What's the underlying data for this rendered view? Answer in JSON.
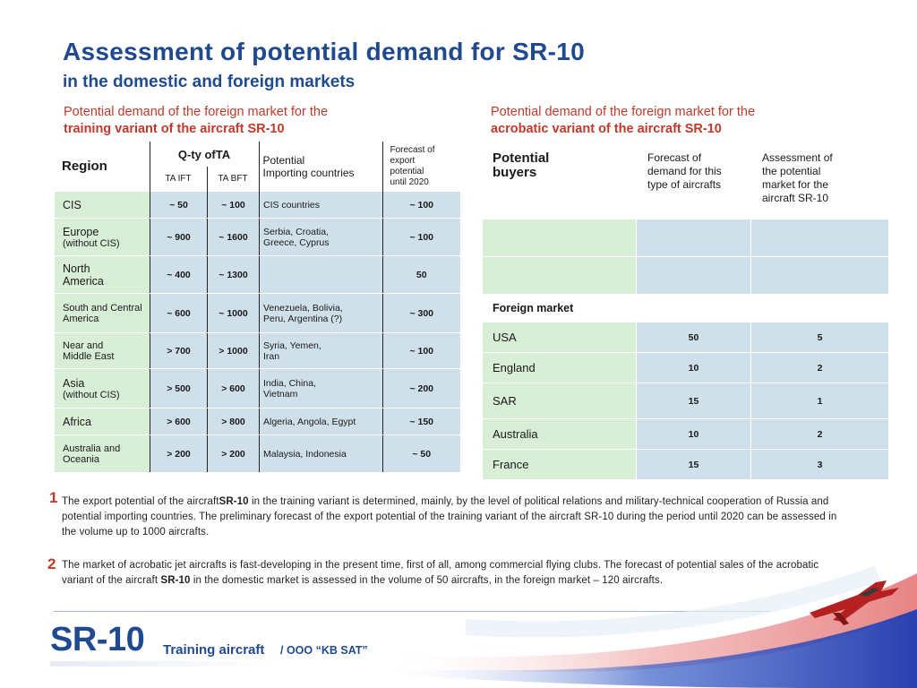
{
  "header": {
    "title": "Assessment of potential demand for SR-10",
    "subtitle": "in the domestic and foreign markets"
  },
  "training": {
    "caption_line1": "Potential demand of the foreign market for the",
    "caption_line2": "training variant of the aircraft SR-10",
    "headers": {
      "region": "Region",
      "qty": "Q-ty ofTA",
      "ta_ift": "TA IFT",
      "ta_bft": "TA BFT",
      "potential_line1": "Potential",
      "potential_line2": "Importing countries",
      "forecast_line1": "Forecast of",
      "forecast_line2": "export",
      "forecast_line3": "potential",
      "forecast_line4": "until 2020"
    },
    "rows": [
      {
        "region": "CIS",
        "region_note": "",
        "ift": "~ 50",
        "bft": "~ 100",
        "countries": "CIS countries",
        "countries2": "",
        "forecast": "~ 100"
      },
      {
        "region": "Europe",
        "region_note": "(without CIS)",
        "ift": "~ 900",
        "bft": "~ 1600",
        "countries": "Serbia, Croatia,",
        "countries2": "Greece, Cyprus",
        "forecast": "~ 100"
      },
      {
        "region": "North",
        "region_note": "America",
        "ift": "~ 400",
        "bft": "~ 1300",
        "countries": "",
        "countries2": "",
        "forecast": "50"
      },
      {
        "region": "South and Central",
        "region_note": "America",
        "ift": "~ 600",
        "bft": "~ 1000",
        "countries": "Venezuela, Bolivia,",
        "countries2": "Peru, Argentina (?)",
        "forecast": "~ 300"
      },
      {
        "region": "Near and",
        "region_note": "Middle East",
        "ift": "> 700",
        "bft": "> 1000",
        "countries": "Syria, Yemen,",
        "countries2": "Iran",
        "forecast": "~ 100"
      },
      {
        "region": "Asia",
        "region_note": "(without CIS)",
        "ift": "> 500",
        "bft": "> 600",
        "countries": "India, China,",
        "countries2": "Vietnam",
        "forecast": "~ 200"
      },
      {
        "region": "Africa",
        "region_note": "",
        "ift": "> 600",
        "bft": "> 800",
        "countries": "Algeria, Angola, Egypt",
        "countries2": "",
        "forecast": "~ 150"
      },
      {
        "region": "Australia and",
        "region_note": "Oceania",
        "ift": "> 200",
        "bft": "> 200",
        "countries": "Malaysia, Indonesia",
        "countries2": "",
        "forecast": "~ 50"
      }
    ]
  },
  "acrobatic": {
    "caption_line1": "Potential demand of the foreign market for the",
    "caption_line2": "acrobatic variant of the aircraft SR-10",
    "headers": {
      "buyers_line1": "Potential",
      "buyers_line2": "buyers",
      "forecast_line1": "Forecast of",
      "forecast_line2": "demand for this",
      "forecast_line3": "type of aircrafts",
      "assess_line1": "Assessment of",
      "assess_line2": "the potential",
      "assess_line3": "market for the",
      "assess_line4": "aircraft SR-10"
    },
    "foreign_market_label": "Foreign market",
    "rows": [
      {
        "buyer": "USA",
        "forecast": "50",
        "assessment": "5"
      },
      {
        "buyer": "England",
        "forecast": "10",
        "assessment": "2"
      },
      {
        "buyer": "SAR",
        "forecast": "15",
        "assessment": "1"
      },
      {
        "buyer": "Australia",
        "forecast": "10",
        "assessment": "2"
      },
      {
        "buyer": "France",
        "forecast": "15",
        "assessment": "3"
      }
    ]
  },
  "notes": {
    "n1": "1",
    "p1_a": "The export potential of the aircraft",
    "p1_b": "SR-10",
    "p1_c": " in the training variant  is determined, mainly, by the level of political relations and military-technical cooperation of Russia and potential importing countries. The preliminary forecast of the export potential of the training variant  of the aircraft SR-10 during the period until 2020 can be assessed in the volume  up to 1000 aircrafts.",
    "n2": "2",
    "p2_a": "The market of acrobatic jet aircrafts is fast-developing  in the present time, first of all, among commercial flying clubs. The forecast of potential sales of the acrobatic variant  of the  aircraft ",
    "p2_b": "SR-10",
    "p2_c": " in the domestic market is assessed in the volume  of 50 aircrafts, in the foreign market – 120 aircrafts."
  },
  "footer": {
    "logo": "SR-10",
    "product": "Training aircraft",
    "org": "/ OOO “KB SAT”"
  }
}
